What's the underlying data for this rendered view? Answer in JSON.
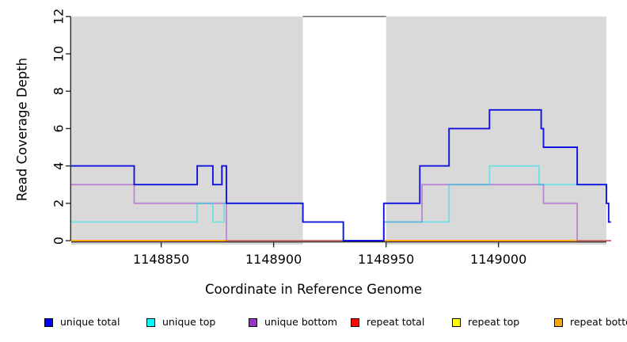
{
  "chart_data": {
    "type": "line",
    "step_interpolation": true,
    "title": "",
    "xlabel": "Coordinate in Reference Genome",
    "ylabel": "Read Coverage Depth",
    "xlim": [
      1148810,
      1149048
    ],
    "ylim": [
      0,
      12
    ],
    "x_ticks": [
      1148850,
      1148900,
      1148950,
      1149000
    ],
    "y_ticks": [
      0,
      2,
      4,
      6,
      8,
      10,
      12
    ],
    "grid": false,
    "panel_background": "#ffffff",
    "shading_color": "#d9d9d9",
    "shaded_regions": [
      [
        1148810,
        1148913
      ],
      [
        1148950,
        1149048
      ]
    ],
    "gap_top_line": {
      "from": 1148913,
      "to": 1148950,
      "y": 12,
      "color": "#6a6a6a"
    },
    "axis_color": "#2b2b2b",
    "series": [
      {
        "name": "repeat total",
        "line_color": "#dd0000",
        "opacity": 1,
        "width": 1.6,
        "points": [
          [
            1148810,
            0
          ],
          [
            1149050,
            0
          ]
        ]
      },
      {
        "name": "repeat top",
        "line_color": "#ffff00",
        "opacity": 1,
        "width": 1.6,
        "points": [
          [
            1148810,
            0
          ],
          [
            1149050,
            0
          ]
        ]
      },
      {
        "name": "repeat bottom",
        "line_color": "#ff9d12",
        "opacity": 1,
        "width": 1.8,
        "points": [
          [
            1148810,
            0
          ],
          [
            1149050,
            0
          ]
        ]
      },
      {
        "name": "unique bottom",
        "line_color": "#9a32cd",
        "opacity": 0.5,
        "width": 1.8,
        "points": [
          [
            1148810,
            3
          ],
          [
            1148838,
            2
          ],
          [
            1148879,
            0
          ],
          [
            1148949,
            1
          ],
          [
            1148966,
            3
          ],
          [
            1149020,
            2
          ],
          [
            1149035,
            0
          ],
          [
            1149050,
            0
          ]
        ]
      },
      {
        "name": "unique top",
        "line_color": "#00e5ee",
        "opacity": 0.5,
        "width": 1.8,
        "points": [
          [
            1148810,
            1
          ],
          [
            1148866,
            2
          ],
          [
            1148873,
            1
          ],
          [
            1148878,
            2
          ],
          [
            1148913,
            1
          ],
          [
            1148931,
            0
          ],
          [
            1148949,
            1
          ],
          [
            1148978,
            3
          ],
          [
            1148996,
            4
          ],
          [
            1149018,
            3
          ],
          [
            1149048,
            2
          ],
          [
            1149049,
            1
          ],
          [
            1149050,
            1
          ]
        ]
      },
      {
        "name": "unique total",
        "line_color": "#1212e0",
        "opacity": 1,
        "width": 1.9,
        "points": [
          [
            1148810,
            4
          ],
          [
            1148838,
            3
          ],
          [
            1148866,
            4
          ],
          [
            1148873,
            3
          ],
          [
            1148877,
            4
          ],
          [
            1148879,
            2
          ],
          [
            1148913,
            1
          ],
          [
            1148931,
            0
          ],
          [
            1148949,
            2
          ],
          [
            1148965,
            4
          ],
          [
            1148978,
            6
          ],
          [
            1148996,
            7
          ],
          [
            1149019,
            6
          ],
          [
            1149020,
            5
          ],
          [
            1149035,
            3
          ],
          [
            1149048,
            2
          ],
          [
            1149049,
            1
          ],
          [
            1149050,
            1
          ]
        ]
      }
    ],
    "legend": {
      "position": "bottom",
      "items": [
        {
          "label": "unique total",
          "color": "#0000ff"
        },
        {
          "label": "unique top",
          "color": "#00ffff"
        },
        {
          "label": "unique bottom",
          "color": "#9a32cd"
        },
        {
          "label": "repeat total",
          "color": "#ff0000"
        },
        {
          "label": "repeat top",
          "color": "#ffff00"
        },
        {
          "label": "repeat bottom",
          "color": "#ffa500"
        }
      ]
    }
  }
}
